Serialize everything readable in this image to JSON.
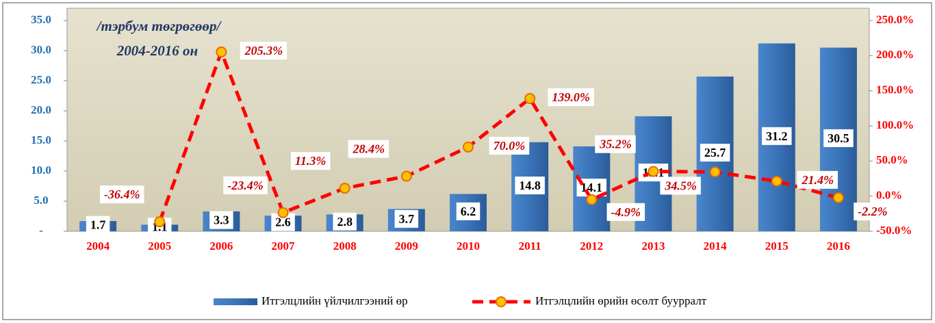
{
  "chart_data": {
    "type": "combo",
    "annotations": [
      "/тэрбум төгрөгөөр/",
      "2004-2016 он"
    ],
    "categories": [
      "2004",
      "2005",
      "2006",
      "2007",
      "2008",
      "2009",
      "2010",
      "2011",
      "2012",
      "2013",
      "2014",
      "2015",
      "2016"
    ],
    "series": [
      {
        "name": "Итгэлцлийн үйлчилгээний өр",
        "type": "bar",
        "color": "#3a73b8",
        "values": [
          1.7,
          1.1,
          3.3,
          2.6,
          2.8,
          3.7,
          6.2,
          14.8,
          14.1,
          19.1,
          25.7,
          31.2,
          30.5
        ]
      },
      {
        "name": "Итгэлцлийн өрийн өсөлт буурралт",
        "type": "line",
        "axis": "y2",
        "color": "#ff0000",
        "values": [
          null,
          -36.4,
          205.3,
          -23.4,
          11.3,
          28.4,
          70.0,
          139.0,
          -4.9,
          35.2,
          34.5,
          21.4,
          -2.2
        ],
        "value_labels": [
          null,
          "-36.4%",
          "205.3%",
          "-23.4%",
          "11.3%",
          "28.4%",
          "70.0%",
          "139.0%",
          "-4.9%",
          "35.2%",
          "34.5%",
          "21.4%",
          "-2.2%"
        ]
      }
    ],
    "ylim": [
      0,
      35
    ],
    "yticks": [
      {
        "value": 0,
        "label": "-"
      },
      {
        "value": 5,
        "label": "5.0"
      },
      {
        "value": 10,
        "label": "10.0"
      },
      {
        "value": 15,
        "label": "15.0"
      },
      {
        "value": 20,
        "label": "20.0"
      },
      {
        "value": 25,
        "label": "25.0"
      },
      {
        "value": 30,
        "label": "30.0"
      },
      {
        "value": 35,
        "label": "35.0"
      }
    ],
    "y2lim": [
      -50,
      250
    ],
    "y2ticks": [
      {
        "value": -50,
        "label": "-50.0%"
      },
      {
        "value": 0,
        "label": "0.0%"
      },
      {
        "value": 50,
        "label": "50.0%"
      },
      {
        "value": 100,
        "label": "100.0%"
      },
      {
        "value": 150,
        "label": "150.0%"
      },
      {
        "value": 200,
        "label": "200.0%"
      },
      {
        "value": 250,
        "label": "250.0%"
      }
    ],
    "legend": "bottom"
  }
}
